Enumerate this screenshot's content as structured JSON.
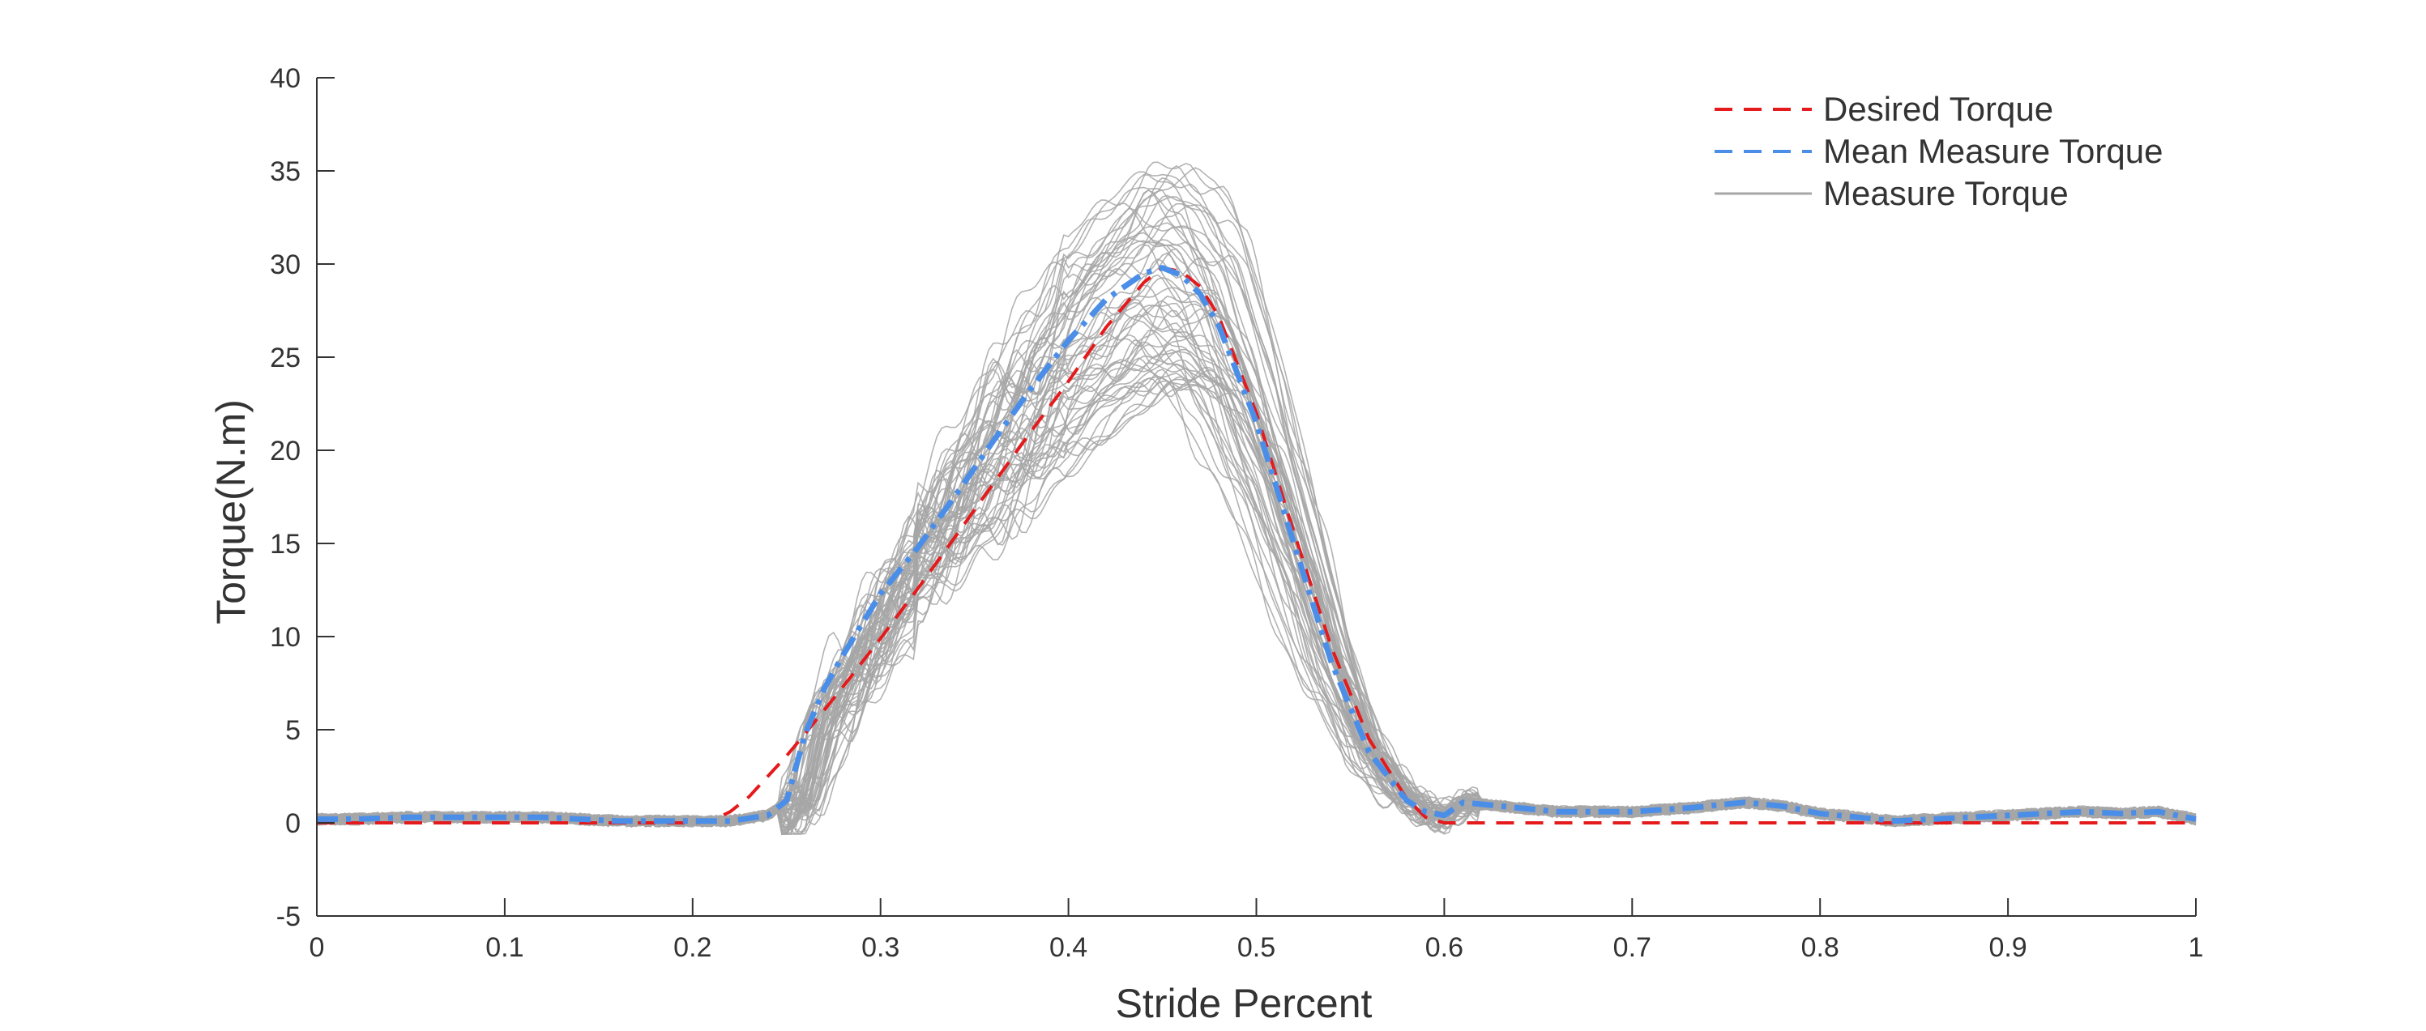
{
  "chart_data": {
    "type": "line",
    "title": "",
    "xlabel": "Stride Percent",
    "ylabel": "Torque(N.m)",
    "xlim": [
      0,
      1
    ],
    "ylim": [
      -5,
      40
    ],
    "xticks": [
      0,
      0.1,
      0.2,
      0.3,
      0.4,
      0.5,
      0.6,
      0.7,
      0.8,
      0.9,
      1
    ],
    "xtick_labels": [
      "0",
      "0.1",
      "0.2",
      "0.3",
      "0.4",
      "0.5",
      "0.6",
      "0.7",
      "0.8",
      "0.9",
      "1"
    ],
    "yticks": [
      -5,
      0,
      5,
      10,
      15,
      20,
      25,
      30,
      35,
      40
    ],
    "ytick_labels": [
      "-5",
      "0",
      "5",
      "10",
      "15",
      "20",
      "25",
      "30",
      "35",
      "40"
    ],
    "grid": false,
    "legend_position": "top-right",
    "series": [
      {
        "name": "Desired Torque",
        "color": "#e41a1c",
        "style": "dashed",
        "x": [
          0,
          0.2,
          0.21,
          0.22,
          0.23,
          0.24,
          0.25,
          0.26,
          0.28,
          0.3,
          0.32,
          0.34,
          0.36,
          0.38,
          0.4,
          0.42,
          0.44,
          0.45,
          0.46,
          0.47,
          0.48,
          0.5,
          0.52,
          0.54,
          0.56,
          0.58,
          0.59,
          0.6,
          0.7,
          0.8,
          0.9,
          1
        ],
        "y": [
          0,
          0,
          0.1,
          0.6,
          1.4,
          2.5,
          3.6,
          4.8,
          7.3,
          9.9,
          12.6,
          15.4,
          18.2,
          21.0,
          23.7,
          26.6,
          29.0,
          29.8,
          29.6,
          28.8,
          27.2,
          22.0,
          15.6,
          9.4,
          4.5,
          1.3,
          0.3,
          0,
          0,
          0,
          0,
          0
        ]
      },
      {
        "name": "Mean Measure Torque",
        "color": "#4b8ee8",
        "style": "dash-dot",
        "x": [
          0,
          0.02,
          0.05,
          0.08,
          0.1,
          0.12,
          0.14,
          0.16,
          0.18,
          0.2,
          0.22,
          0.24,
          0.25,
          0.26,
          0.27,
          0.28,
          0.3,
          0.32,
          0.34,
          0.36,
          0.38,
          0.4,
          0.42,
          0.44,
          0.45,
          0.46,
          0.47,
          0.48,
          0.5,
          0.52,
          0.54,
          0.56,
          0.58,
          0.59,
          0.6,
          0.61,
          0.63,
          0.66,
          0.7,
          0.73,
          0.76,
          0.78,
          0.8,
          0.82,
          0.84,
          0.86,
          0.88,
          0.9,
          0.92,
          0.94,
          0.96,
          0.98,
          1
        ],
        "y": [
          0.2,
          0.2,
          0.3,
          0.3,
          0.3,
          0.3,
          0.2,
          0.1,
          0.1,
          0.1,
          0.1,
          0.4,
          1.2,
          4.8,
          7.2,
          9.0,
          12.3,
          14.8,
          17.6,
          20.5,
          23.3,
          25.9,
          28.1,
          29.5,
          29.8,
          29.4,
          28.4,
          26.7,
          21.5,
          15.0,
          8.6,
          3.8,
          1.2,
          0.6,
          0.4,
          1.1,
          0.9,
          0.6,
          0.6,
          0.8,
          1.1,
          0.9,
          0.5,
          0.3,
          0.1,
          0.2,
          0.3,
          0.4,
          0.5,
          0.6,
          0.5,
          0.6,
          0.2
        ]
      },
      {
        "name": "Measure Torque",
        "color": "#a6a6a6",
        "style": "solid",
        "note_trials": "many individual trials spread around the mean; peak between about 23 and 35.5"
      }
    ]
  }
}
